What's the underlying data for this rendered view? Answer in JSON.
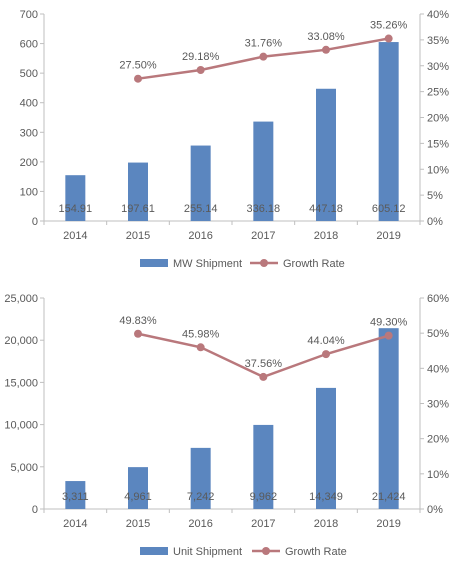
{
  "chart_data": [
    {
      "type": "bar",
      "categories": [
        "2014",
        "2015",
        "2016",
        "2017",
        "2018",
        "2019"
      ],
      "series": [
        {
          "name": "MW Shipment",
          "type": "bar",
          "axis": "left",
          "values": [
            154.91,
            197.61,
            255.14,
            336.18,
            447.18,
            605.12
          ],
          "value_labels": [
            "154.91",
            "197.61",
            "255.14",
            "336.18",
            "447.18",
            "605.12"
          ],
          "color": "#5b86bf"
        },
        {
          "name": "Growth Rate",
          "type": "line",
          "axis": "right",
          "values": [
            null,
            27.5,
            29.18,
            31.76,
            33.08,
            35.26
          ],
          "value_labels": [
            "",
            "27.50%",
            "29.18%",
            "31.76%",
            "33.08%",
            "35.26%"
          ],
          "color": "#b9787c"
        }
      ],
      "left_axis": {
        "ylim": [
          0,
          700
        ],
        "ticks": [
          "0",
          "100",
          "200",
          "300",
          "400",
          "500",
          "600",
          "700"
        ]
      },
      "right_axis": {
        "ylim": [
          0,
          40
        ],
        "ticks": [
          "0%",
          "5%",
          "10%",
          "15%",
          "20%",
          "25%",
          "30%",
          "35%",
          "40%"
        ]
      },
      "grid": false,
      "legend": "bottom"
    },
    {
      "type": "bar",
      "categories": [
        "2014",
        "2015",
        "2016",
        "2017",
        "2018",
        "2019"
      ],
      "series": [
        {
          "name": "Unit Shipment",
          "type": "bar",
          "axis": "left",
          "values": [
            3311,
            4961,
            7242,
            9962,
            14349,
            21424
          ],
          "value_labels": [
            "3,311",
            "4,961",
            "7,242",
            "9,962",
            "14,349",
            "21,424"
          ],
          "color": "#5b86bf"
        },
        {
          "name": "Growth Rate",
          "type": "line",
          "axis": "right",
          "values": [
            null,
            49.83,
            45.98,
            37.56,
            44.04,
            49.3
          ],
          "value_labels": [
            "",
            "49.83%",
            "45.98%",
            "37.56%",
            "44.04%",
            "49.30%"
          ],
          "color": "#b9787c"
        }
      ],
      "left_axis": {
        "ylim": [
          0,
          25000
        ],
        "ticks": [
          "0",
          "5,000",
          "10,000",
          "15,000",
          "20,000",
          "25,000"
        ]
      },
      "right_axis": {
        "ylim": [
          0,
          60
        ],
        "ticks": [
          "0%",
          "10%",
          "20%",
          "30%",
          "40%",
          "50%",
          "60%"
        ]
      },
      "grid": false,
      "legend": "bottom"
    }
  ]
}
